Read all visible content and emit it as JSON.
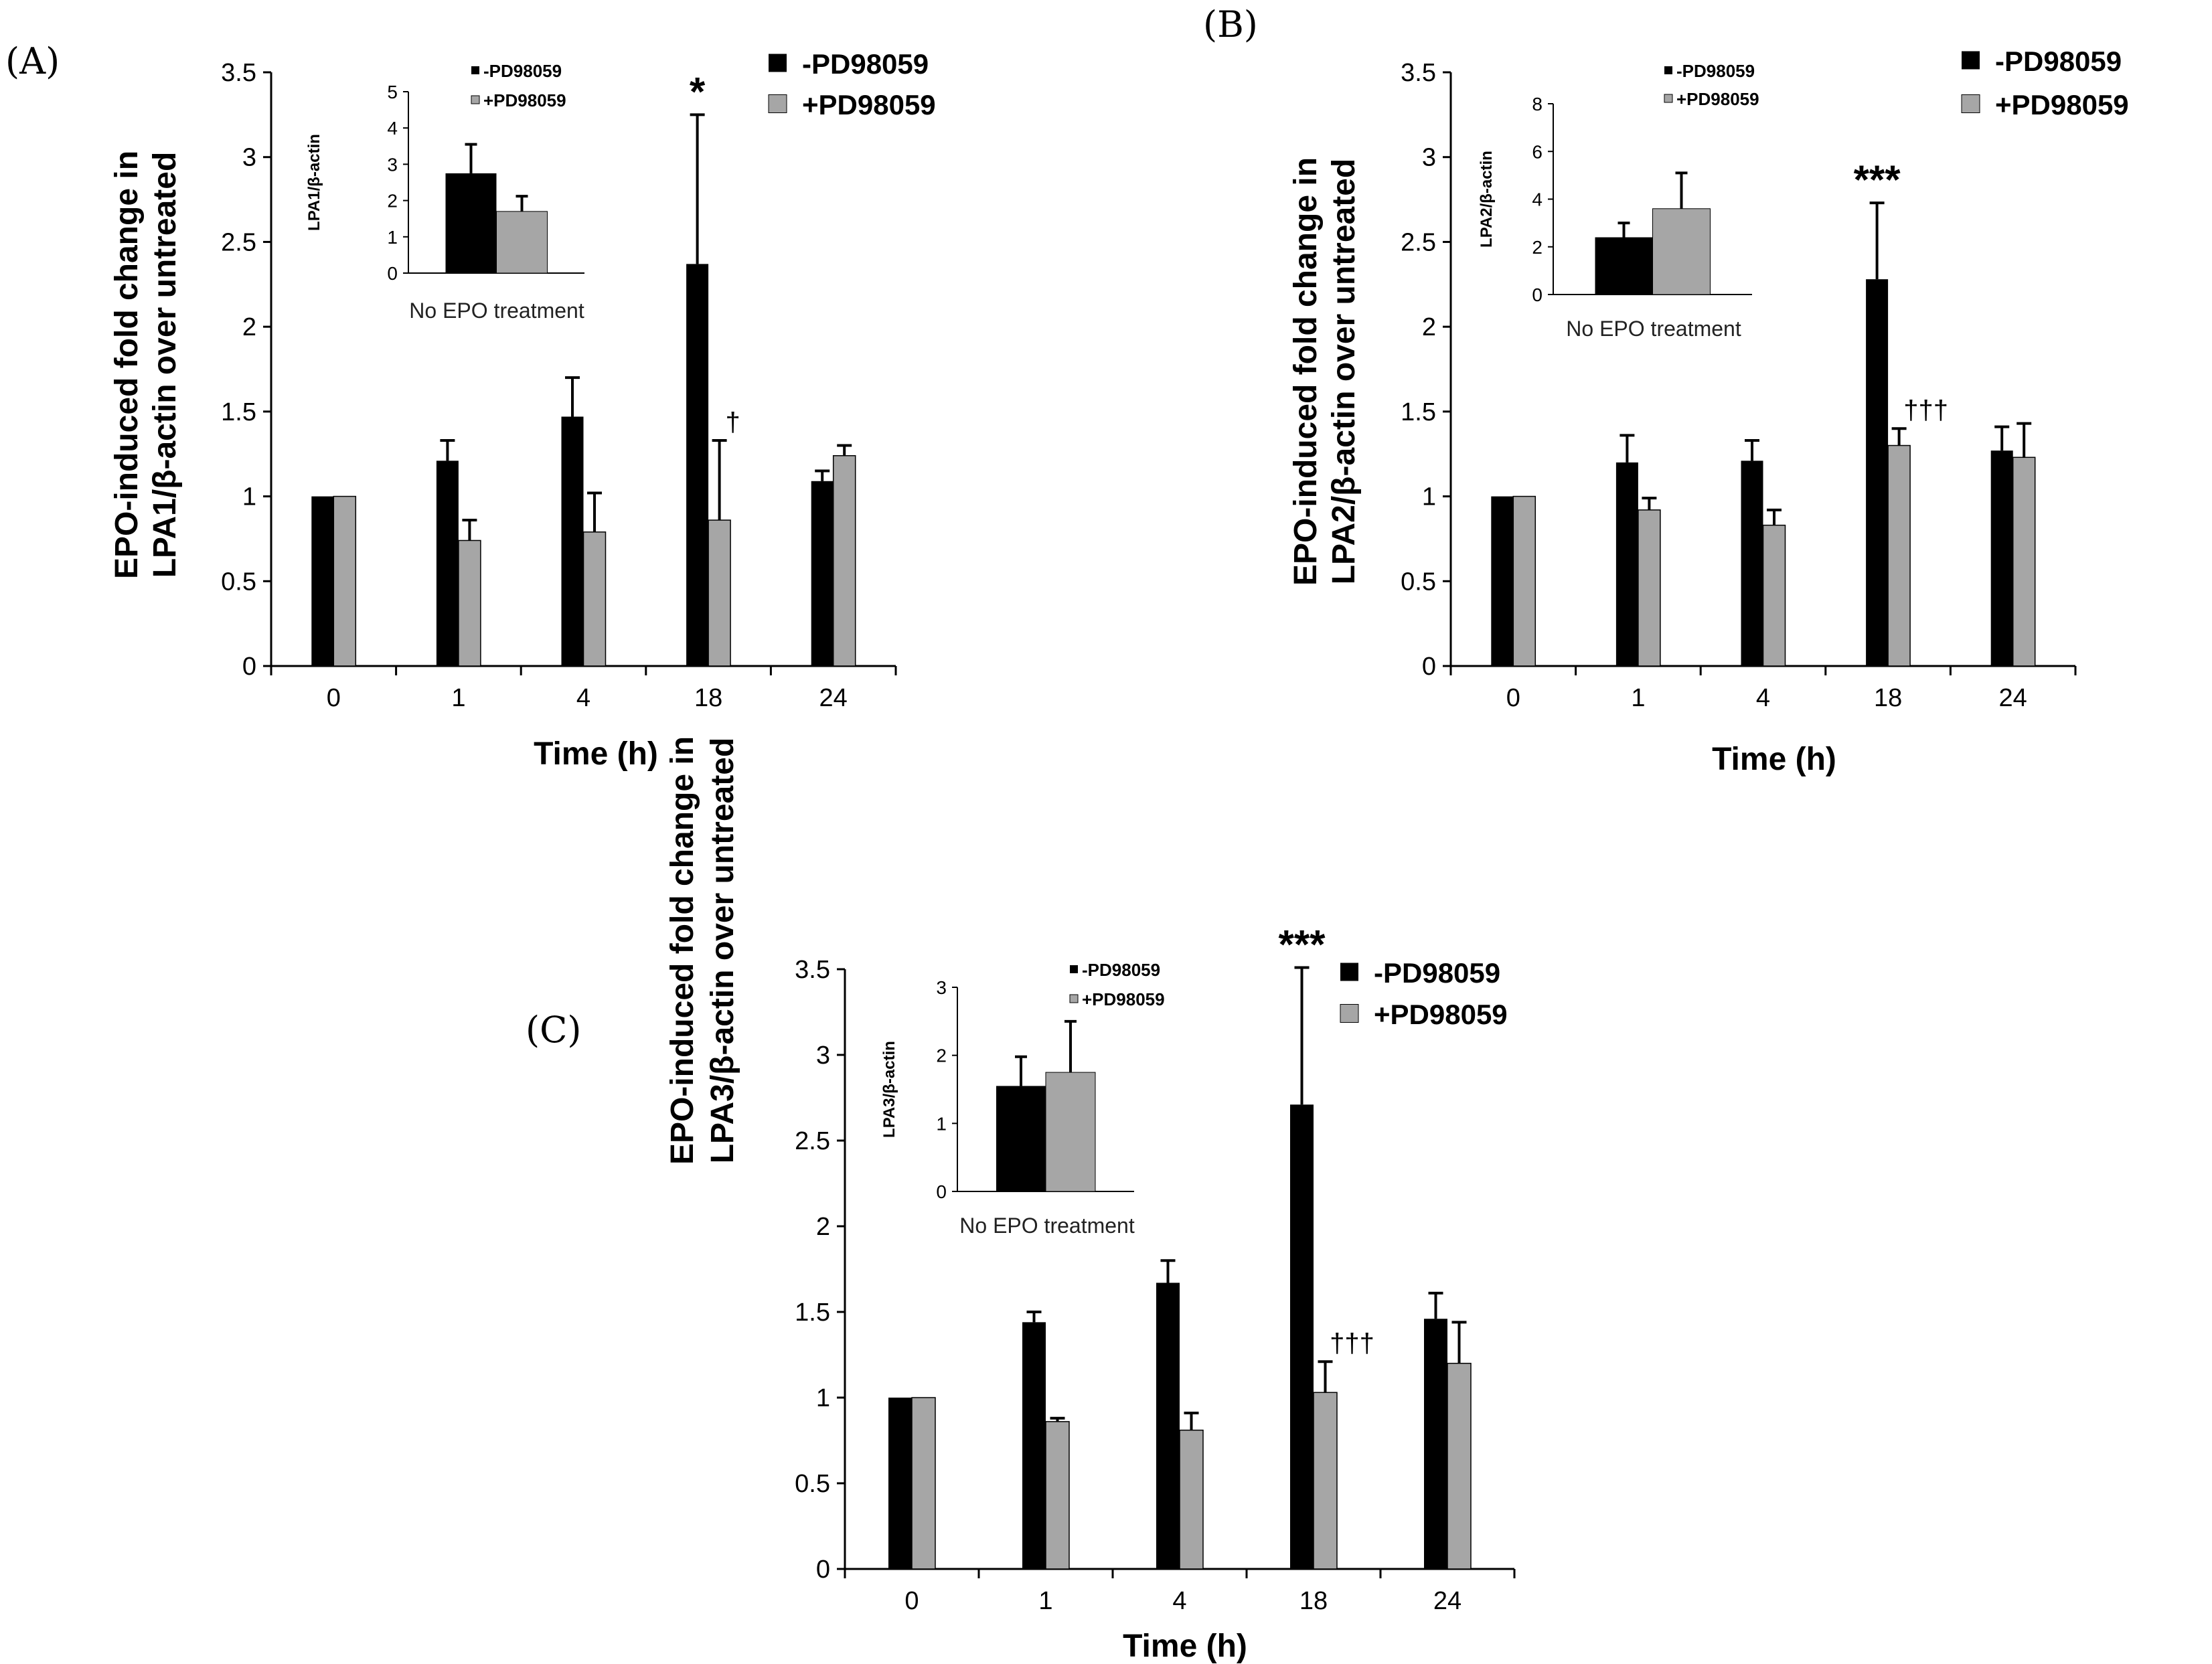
{
  "colors": {
    "minus": "#000000",
    "plus": "#a6a6a6",
    "axis": "#000000"
  },
  "chart_data": [
    {
      "type": "bar",
      "panel_label": "(A)",
      "ylabel_line1": "EPO-induced fold change in",
      "ylabel_line2": "LPA1/β-actin over untreated",
      "xlabel": "Time (h)",
      "categories": [
        "0",
        "1",
        "4",
        "18",
        "24"
      ],
      "ylim": [
        0,
        3.5
      ],
      "yticks": [
        "0",
        "0.5",
        "1",
        "1.5",
        "2",
        "2.5",
        "3",
        "3.5"
      ],
      "legend": [
        "-PD98059",
        "+PD98059"
      ],
      "series": [
        {
          "name": "-PD98059",
          "values": [
            1.0,
            1.21,
            1.47,
            2.37,
            1.09
          ],
          "errors": [
            0,
            0.12,
            0.23,
            0.88,
            0.06
          ]
        },
        {
          "name": "+PD98059",
          "values": [
            1.0,
            0.74,
            0.79,
            0.86,
            1.24
          ],
          "errors": [
            0,
            0.12,
            0.23,
            0.47,
            0.06
          ]
        }
      ],
      "annotations": [
        {
          "category": "18",
          "series": "-PD98059",
          "text": "*",
          "kind": "star"
        },
        {
          "category": "18",
          "series": "+PD98059",
          "text": "†",
          "kind": "dagger"
        }
      ],
      "inset": {
        "ylabel": "LPA1/β-actin",
        "category": "No EPO treatment",
        "ylim": [
          0,
          5
        ],
        "yticks": [
          "0",
          "1",
          "2",
          "3",
          "4",
          "5"
        ],
        "legend": [
          "-PD98059",
          "+PD98059"
        ],
        "values": [
          2.75,
          1.7
        ],
        "errors": [
          0.8,
          0.42
        ]
      }
    },
    {
      "type": "bar",
      "panel_label": "(B)",
      "ylabel_line1": "EPO-induced fold change in",
      "ylabel_line2": "LPA2/β-actin over untreated",
      "xlabel": "Time (h)",
      "categories": [
        "0",
        "1",
        "4",
        "18",
        "24"
      ],
      "ylim": [
        0,
        3.5
      ],
      "yticks": [
        "0",
        "0.5",
        "1",
        "1.5",
        "2",
        "2.5",
        "3",
        "3.5"
      ],
      "legend": [
        "-PD98059",
        "+PD98059"
      ],
      "series": [
        {
          "name": "-PD98059",
          "values": [
            1.0,
            1.2,
            1.21,
            2.28,
            1.27
          ],
          "errors": [
            0,
            0.16,
            0.12,
            0.45,
            0.14
          ]
        },
        {
          "name": "+PD98059",
          "values": [
            1.0,
            0.92,
            0.83,
            1.3,
            1.23
          ],
          "errors": [
            0,
            0.07,
            0.09,
            0.1,
            0.2
          ]
        }
      ],
      "annotations": [
        {
          "category": "18",
          "series": "-PD98059",
          "text": "***",
          "kind": "star"
        },
        {
          "category": "18",
          "series": "+PD98059",
          "text": "†††",
          "kind": "dagger"
        }
      ],
      "inset": {
        "ylabel": "LPA2/β-actin",
        "category": "No EPO treatment",
        "ylim": [
          0,
          8
        ],
        "yticks": [
          "0",
          "2",
          "4",
          "6",
          "8"
        ],
        "legend": [
          "-PD98059",
          "+PD98059"
        ],
        "values": [
          2.4,
          3.6
        ],
        "errors": [
          0.6,
          1.5
        ]
      }
    },
    {
      "type": "bar",
      "panel_label": "(C)",
      "ylabel_line1": "EPO-induced fold change in",
      "ylabel_line2": "LPA3/β-actin over untreated",
      "xlabel": "Time (h)",
      "categories": [
        "0",
        "1",
        "4",
        "18",
        "24"
      ],
      "ylim": [
        0,
        3.5
      ],
      "yticks": [
        "0",
        "0.5",
        "1",
        "1.5",
        "2",
        "2.5",
        "3",
        "3.5"
      ],
      "legend": [
        "-PD98059",
        "+PD98059"
      ],
      "series": [
        {
          "name": "-PD98059",
          "values": [
            1.0,
            1.44,
            1.67,
            2.71,
            1.46
          ],
          "errors": [
            0,
            0.06,
            0.13,
            0.8,
            0.15
          ]
        },
        {
          "name": "+PD98059",
          "values": [
            1.0,
            0.86,
            0.81,
            1.03,
            1.2
          ],
          "errors": [
            0,
            0.02,
            0.1,
            0.18,
            0.24
          ]
        }
      ],
      "annotations": [
        {
          "category": "18",
          "series": "-PD98059",
          "text": "***",
          "kind": "star"
        },
        {
          "category": "18",
          "series": "+PD98059",
          "text": "†††",
          "kind": "dagger"
        }
      ],
      "inset": {
        "ylabel": "LPA3/β-actin",
        "category": "No EPO treatment",
        "ylim": [
          0,
          3
        ],
        "yticks": [
          "0",
          "1",
          "2",
          "3"
        ],
        "legend": [
          "-PD98059",
          "+PD98059"
        ],
        "values": [
          1.55,
          1.75
        ],
        "errors": [
          0.43,
          0.75
        ]
      }
    }
  ]
}
